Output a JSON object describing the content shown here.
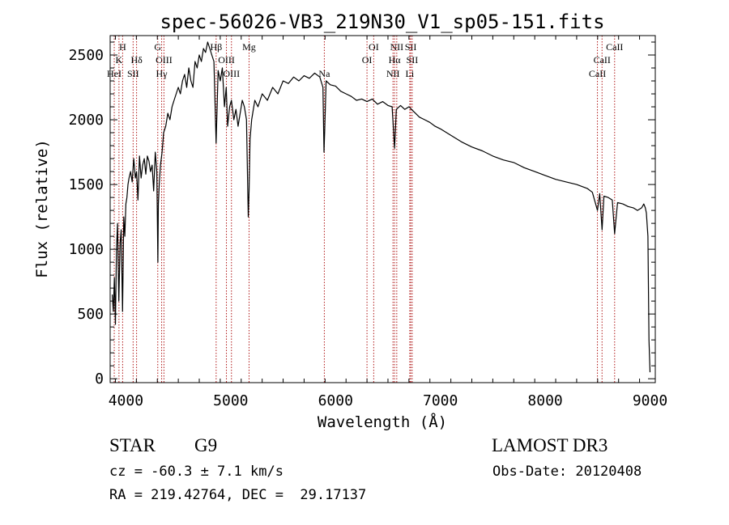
{
  "chart_data": {
    "type": "line",
    "title": "spec-56026-VB3_219N30_V1_sp05-151.fits",
    "xlabel": "Wavelength (Å)",
    "ylabel": "Flux (relative)",
    "xlim": [
      3850,
      9050
    ],
    "ylim": [
      -30,
      2650
    ],
    "xticks": [
      4000,
      5000,
      6000,
      7000,
      8000,
      9000
    ],
    "yticks": [
      0,
      500,
      1000,
      1500,
      2000,
      2500
    ],
    "grid": false,
    "series": [
      {
        "name": "flux",
        "color": "#000000",
        "x": [
          3870,
          3880,
          3890,
          3900,
          3910,
          3920,
          3933,
          3945,
          3955,
          3968,
          3980,
          3990,
          4000,
          4010,
          4020,
          4030,
          4045,
          4060,
          4075,
          4090,
          4102,
          4115,
          4130,
          4145,
          4160,
          4175,
          4190,
          4205,
          4220,
          4235,
          4250,
          4265,
          4280,
          4295,
          4305,
          4310,
          4318,
          4330,
          4345,
          4360,
          4380,
          4400,
          4420,
          4440,
          4460,
          4480,
          4500,
          4520,
          4540,
          4560,
          4580,
          4600,
          4620,
          4640,
          4660,
          4680,
          4700,
          4720,
          4740,
          4760,
          4780,
          4800,
          4820,
          4840,
          4861,
          4880,
          4900,
          4920,
          4940,
          4957,
          4970,
          4990,
          5007,
          5030,
          5050,
          5070,
          5090,
          5110,
          5130,
          5150,
          5167,
          5175,
          5184,
          5200,
          5230,
          5260,
          5300,
          5350,
          5400,
          5450,
          5500,
          5550,
          5600,
          5650,
          5700,
          5750,
          5800,
          5850,
          5880,
          5890,
          5896,
          5910,
          5950,
          6000,
          6050,
          6100,
          6150,
          6200,
          6250,
          6300,
          6350,
          6400,
          6450,
          6500,
          6540,
          6563,
          6580,
          6620,
          6660,
          6700,
          6750,
          6800,
          6850,
          6900,
          6950,
          7000,
          7100,
          7200,
          7300,
          7400,
          7500,
          7600,
          7700,
          7800,
          7900,
          8000,
          8100,
          8200,
          8300,
          8400,
          8450,
          8498,
          8520,
          8542,
          8560,
          8600,
          8640,
          8662,
          8690,
          8740,
          8790,
          8840,
          8880,
          8920,
          8940,
          8955,
          8965,
          8980,
          8990,
          9000
        ],
        "y": [
          650,
          520,
          780,
          420,
          1000,
          1200,
          600,
          1050,
          1150,
          520,
          1250,
          1100,
          1350,
          1400,
          1500,
          1550,
          1600,
          1520,
          1700,
          1550,
          1600,
          1380,
          1720,
          1550,
          1650,
          1700,
          1580,
          1720,
          1680,
          1600,
          1650,
          1450,
          1750,
          1600,
          900,
          1350,
          1500,
          1650,
          1750,
          1900,
          1950,
          2050,
          2000,
          2100,
          2150,
          2200,
          2250,
          2200,
          2300,
          2350,
          2250,
          2400,
          2300,
          2250,
          2450,
          2400,
          2500,
          2450,
          2550,
          2520,
          2600,
          2550,
          2500,
          2450,
          1820,
          2380,
          2300,
          2400,
          2100,
          2250,
          1950,
          2100,
          2150,
          2000,
          2080,
          1950,
          2050,
          2150,
          2100,
          2000,
          1250,
          1450,
          1850,
          2000,
          2150,
          2100,
          2200,
          2150,
          2250,
          2200,
          2300,
          2280,
          2330,
          2300,
          2340,
          2320,
          2360,
          2330,
          2250,
          1750,
          1900,
          2300,
          2270,
          2260,
          2220,
          2200,
          2180,
          2150,
          2160,
          2140,
          2160,
          2120,
          2140,
          2110,
          2100,
          1780,
          2080,
          2110,
          2080,
          2100,
          2060,
          2020,
          2000,
          1980,
          1950,
          1930,
          1880,
          1830,
          1790,
          1760,
          1720,
          1690,
          1670,
          1630,
          1600,
          1570,
          1540,
          1520,
          1500,
          1470,
          1440,
          1300,
          1430,
          1150,
          1410,
          1400,
          1380,
          1120,
          1360,
          1350,
          1330,
          1320,
          1300,
          1320,
          1350,
          1320,
          1280,
          1100,
          300,
          50
        ]
      }
    ],
    "lines": [
      {
        "name": "K",
        "wl": 3934,
        "row": 2
      },
      {
        "name": "H",
        "wl": 3969,
        "row": 1
      },
      {
        "name": "HeI",
        "wl": 3889,
        "row": 3
      },
      {
        "name": "SII",
        "wl": 4069,
        "row": 3
      },
      {
        "name": "Hδ",
        "wl": 4102,
        "row": 2
      },
      {
        "name": "G",
        "wl": 4304,
        "row": 1
      },
      {
        "name": "OIII",
        "wl": 4363,
        "row": 2
      },
      {
        "name": "Hγ",
        "wl": 4341,
        "row": 3
      },
      {
        "name": "Hβ",
        "wl": 4861,
        "row": 1
      },
      {
        "name": "OIII",
        "wl": 4959,
        "row": 2
      },
      {
        "name": "OIII",
        "wl": 5007,
        "row": 3
      },
      {
        "name": "Mg",
        "wl": 5175,
        "row": 1
      },
      {
        "name": "Na",
        "wl": 5893,
        "row": 3
      },
      {
        "name": "OI",
        "wl": 6364,
        "row": 1
      },
      {
        "name": "OI",
        "wl": 6300,
        "row": 2
      },
      {
        "name": "NII",
        "wl": 6584,
        "row": 1
      },
      {
        "name": "Hα",
        "wl": 6563,
        "row": 2
      },
      {
        "name": "NII",
        "wl": 6548,
        "row": 3
      },
      {
        "name": "SII",
        "wl": 6717,
        "row": 1
      },
      {
        "name": "SII",
        "wl": 6731,
        "row": 2
      },
      {
        "name": "Li",
        "wl": 6708,
        "row": 3
      },
      {
        "name": "CaII",
        "wl": 8662,
        "row": 1
      },
      {
        "name": "CaII",
        "wl": 8542,
        "row": 2
      },
      {
        "name": "CaII",
        "wl": 8498,
        "row": 3
      }
    ]
  },
  "info": {
    "class_label": "STAR",
    "subclass_label": "G9",
    "cz": "cz = -60.3 ± 7.1 km/s",
    "coords": "RA = 219.42764, DEC =  29.17137",
    "survey": "LAMOST DR3",
    "obs_date": "Obs-Date: 20120408"
  }
}
